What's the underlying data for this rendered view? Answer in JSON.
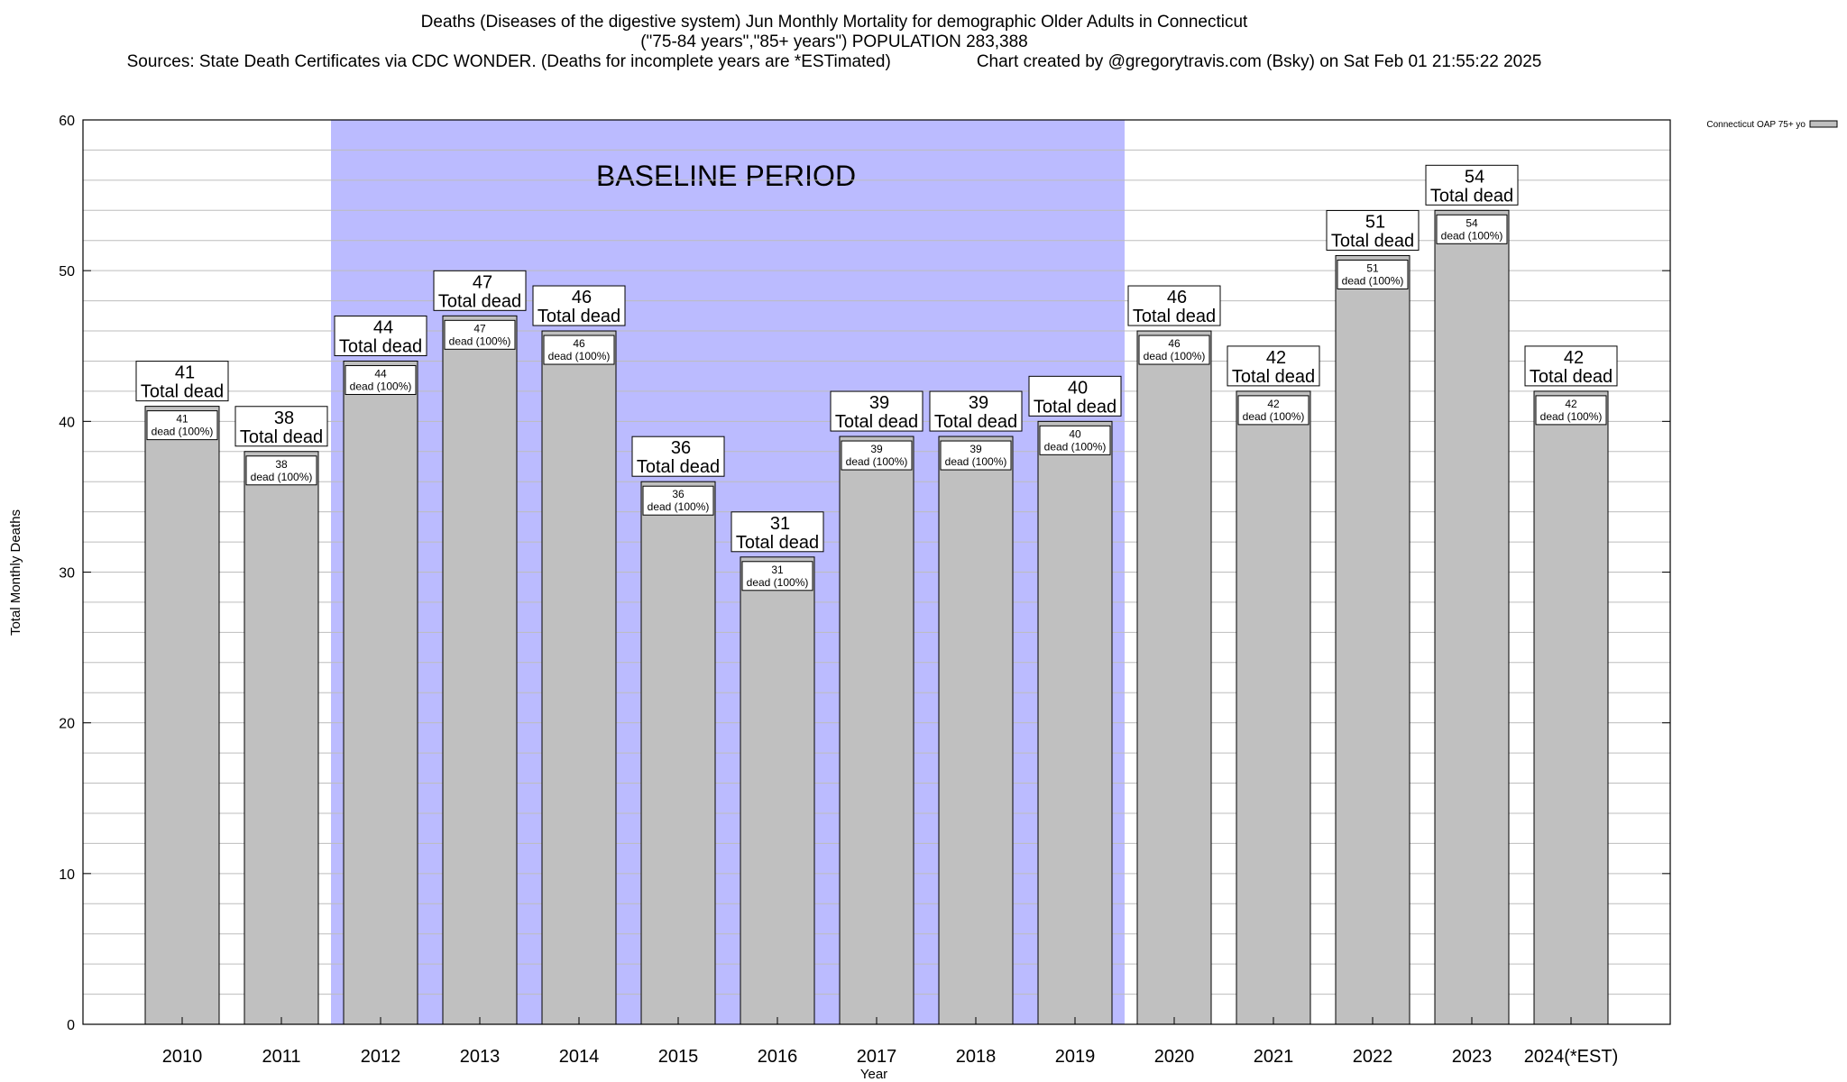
{
  "header": {
    "line1": "Deaths (Diseases of the digestive system) Jun Monthly Mortality for demographic Older Adults in Connecticut",
    "line2": "(\"75-84 years\",\"85+ years\") POPULATION 283,388",
    "line3_sources": "Sources: State Death Certificates via CDC WONDER. (Deaths for incomplete years are *ESTimated)",
    "line3_credit": "Chart created by @gregorytravis.com (Bsky) on Sat Feb 01 21:55:22 2025"
  },
  "chart_data": {
    "type": "bar",
    "categories": [
      "2010",
      "2011",
      "2012",
      "2013",
      "2014",
      "2015",
      "2016",
      "2017",
      "2018",
      "2019",
      "2020",
      "2021",
      "2022",
      "2023",
      "2024(*EST)"
    ],
    "series": [
      {
        "name": "Connecticut OAP 75+ yo",
        "values": [
          41,
          38,
          44,
          47,
          46,
          36,
          31,
          39,
          39,
          40,
          46,
          42,
          51,
          54,
          42
        ]
      }
    ],
    "xlabel": "Year",
    "ylabel": "Total Monthly Deaths",
    "ylim": [
      0,
      60
    ],
    "yticks": [
      0,
      10,
      20,
      30,
      40,
      50,
      60
    ],
    "grid": true,
    "legend_position": "top-right",
    "colors": {
      "bar": "#c0c0c0",
      "baseline": "#bbbbff"
    },
    "baseline": {
      "label": "BASELINE PERIOD",
      "from": "2012",
      "to": "2019"
    },
    "label_top_suffix": "Total dead",
    "label_inner_suffix": "dead (100%)"
  }
}
